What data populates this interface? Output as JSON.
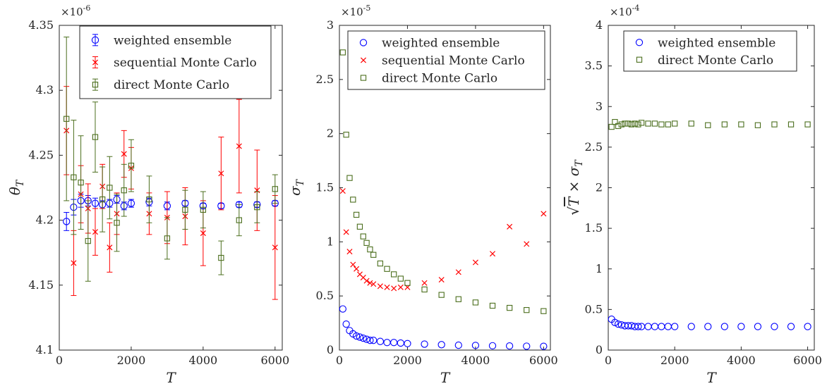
{
  "chart_data": [
    {
      "type": "scatter",
      "panel": "left",
      "xlabel": "T",
      "ylabel": "θ_T",
      "xlim": [
        0,
        6200
      ],
      "ylim": [
        4.1,
        4.35
      ],
      "x_ticks": [
        "0",
        "2000",
        "4000",
        "6000"
      ],
      "y_ticks": [
        "4.1",
        "4.15",
        "4.2",
        "4.25",
        "4.3",
        "4.35"
      ],
      "y_multiplier": "×10",
      "y_multiplier_exp": "-6",
      "legend_position": "top-right",
      "grid": false,
      "series": [
        {
          "name": "weighted ensemble",
          "marker": "circle",
          "color": "#0000ff",
          "error_bars": true,
          "x": [
            200,
            400,
            600,
            800,
            1000,
            1200,
            1400,
            1600,
            1800,
            2000,
            2500,
            3000,
            3500,
            4000,
            4500,
            5000,
            5500,
            6000
          ],
          "y": [
            4.199,
            4.21,
            4.215,
            4.215,
            4.213,
            4.212,
            4.213,
            4.216,
            4.211,
            4.213,
            4.214,
            4.211,
            4.213,
            4.211,
            4.211,
            4.212,
            4.212,
            4.213
          ],
          "err": [
            0.007,
            0.006,
            0.005,
            0.004,
            0.004,
            0.003,
            0.003,
            0.003,
            0.003,
            0.003,
            0.003,
            0.003,
            0.002,
            0.002,
            0.002,
            0.002,
            0.002,
            0.002
          ]
        },
        {
          "name": "sequential Monte Carlo",
          "marker": "x",
          "color": "#ff0000",
          "error_bars": true,
          "x": [
            200,
            400,
            600,
            800,
            1000,
            1200,
            1400,
            1600,
            1800,
            2000,
            2500,
            3000,
            3500,
            4000,
            4500,
            5000,
            5500,
            6000
          ],
          "y": [
            4.269,
            4.167,
            4.22,
            4.209,
            4.191,
            4.226,
            4.179,
            4.205,
            4.251,
            4.24,
            4.205,
            4.202,
            4.203,
            4.19,
            4.236,
            4.257,
            4.223,
            4.179
          ],
          "err": [
            0.034,
            0.025,
            0.022,
            0.019,
            0.018,
            0.017,
            0.019,
            0.016,
            0.018,
            0.016,
            0.016,
            0.02,
            0.022,
            0.025,
            0.028,
            0.036,
            0.031,
            0.04
          ]
        },
        {
          "name": "direct Monte Carlo",
          "marker": "square",
          "color": "#4b6e1d",
          "error_bars": true,
          "x": [
            200,
            400,
            600,
            800,
            1000,
            1200,
            1400,
            1600,
            1800,
            2000,
            2500,
            3000,
            3500,
            4000,
            4500,
            5000,
            5500,
            6000
          ],
          "y": [
            4.278,
            4.233,
            4.229,
            4.184,
            4.264,
            4.216,
            4.225,
            4.198,
            4.223,
            4.242,
            4.216,
            4.186,
            4.208,
            4.208,
            4.171,
            4.2,
            4.21,
            4.224
          ],
          "err": [
            0.063,
            0.044,
            0.036,
            0.031,
            0.027,
            0.025,
            0.024,
            0.022,
            0.02,
            0.02,
            0.018,
            0.016,
            0.015,
            0.014,
            0.013,
            0.012,
            0.012,
            0.011
          ]
        }
      ]
    },
    {
      "type": "scatter",
      "panel": "middle",
      "xlabel": "T",
      "ylabel": "σ_T",
      "xlim": [
        0,
        6200
      ],
      "ylim": [
        0,
        3
      ],
      "x_ticks": [
        "0",
        "2000",
        "4000",
        "6000"
      ],
      "y_ticks": [
        "0",
        "0.5",
        "1",
        "1.5",
        "2",
        "2.5",
        "3"
      ],
      "y_multiplier": "×10",
      "y_multiplier_exp": "-5",
      "legend_position": "top-right",
      "grid": false,
      "series": [
        {
          "name": "weighted ensemble",
          "marker": "circle",
          "color": "#0000ff",
          "x": [
            100,
            200,
            300,
            400,
            500,
            600,
            700,
            800,
            900,
            1000,
            1200,
            1400,
            1600,
            1800,
            2000,
            2500,
            3000,
            3500,
            4000,
            4500,
            5000,
            5500,
            6000
          ],
          "y": [
            0.38,
            0.24,
            0.18,
            0.15,
            0.13,
            0.12,
            0.11,
            0.1,
            0.09,
            0.09,
            0.08,
            0.07,
            0.07,
            0.065,
            0.06,
            0.055,
            0.05,
            0.045,
            0.043,
            0.04,
            0.038,
            0.036,
            0.035
          ]
        },
        {
          "name": "sequential Monte Carlo",
          "marker": "x",
          "color": "#ff0000",
          "x": [
            100,
            200,
            300,
            400,
            500,
            600,
            700,
            800,
            900,
            1000,
            1200,
            1400,
            1600,
            1800,
            2000,
            2500,
            3000,
            3500,
            4000,
            4500,
            5000,
            5500,
            6000
          ],
          "y": [
            1.47,
            1.09,
            0.91,
            0.79,
            0.75,
            0.7,
            0.67,
            0.64,
            0.62,
            0.61,
            0.59,
            0.58,
            0.57,
            0.58,
            0.58,
            0.62,
            0.65,
            0.72,
            0.81,
            0.89,
            1.14,
            0.98,
            1.26
          ]
        },
        {
          "name": "direct Monte Carlo",
          "marker": "square",
          "color": "#4b6e1d",
          "x": [
            100,
            200,
            300,
            400,
            500,
            600,
            700,
            800,
            900,
            1000,
            1200,
            1400,
            1600,
            1800,
            2000,
            2500,
            3000,
            3500,
            4000,
            4500,
            5000,
            5500,
            6000
          ],
          "y": [
            2.75,
            1.99,
            1.59,
            1.39,
            1.25,
            1.14,
            1.05,
            0.99,
            0.93,
            0.88,
            0.8,
            0.75,
            0.7,
            0.66,
            0.62,
            0.56,
            0.51,
            0.47,
            0.44,
            0.41,
            0.39,
            0.37,
            0.36
          ]
        }
      ]
    },
    {
      "type": "scatter",
      "panel": "right",
      "xlabel": "T",
      "ylabel": "√T × σ_T",
      "xlim": [
        0,
        6200
      ],
      "ylim": [
        0,
        4
      ],
      "x_ticks": [
        "0",
        "2000",
        "4000",
        "6000"
      ],
      "y_ticks": [
        "0",
        "0.5",
        "1",
        "1.5",
        "2",
        "2.5",
        "3",
        "3.5",
        "4"
      ],
      "y_multiplier": "×10",
      "y_multiplier_exp": "-4",
      "legend_position": "top-right",
      "grid": false,
      "series": [
        {
          "name": "weighted ensemble",
          "marker": "circle",
          "color": "#0000ff",
          "x": [
            100,
            200,
            300,
            400,
            500,
            600,
            700,
            800,
            900,
            1000,
            1200,
            1400,
            1600,
            1800,
            2000,
            2500,
            3000,
            3500,
            4000,
            4500,
            5000,
            5500,
            6000
          ],
          "y": [
            0.38,
            0.34,
            0.32,
            0.31,
            0.3,
            0.3,
            0.3,
            0.29,
            0.29,
            0.29,
            0.29,
            0.29,
            0.29,
            0.29,
            0.29,
            0.29,
            0.29,
            0.29,
            0.29,
            0.29,
            0.29,
            0.29,
            0.29
          ]
        },
        {
          "name": "direct Monte Carlo",
          "marker": "square",
          "color": "#4b6e1d",
          "x": [
            100,
            200,
            300,
            400,
            500,
            600,
            700,
            800,
            900,
            1000,
            1200,
            1400,
            1600,
            1800,
            2000,
            2500,
            3000,
            3500,
            4000,
            4500,
            5000,
            5500,
            6000
          ],
          "y": [
            2.75,
            2.81,
            2.76,
            2.78,
            2.79,
            2.79,
            2.78,
            2.79,
            2.78,
            2.8,
            2.79,
            2.79,
            2.78,
            2.78,
            2.79,
            2.79,
            2.77,
            2.78,
            2.78,
            2.77,
            2.78,
            2.78,
            2.78
          ]
        }
      ]
    }
  ]
}
